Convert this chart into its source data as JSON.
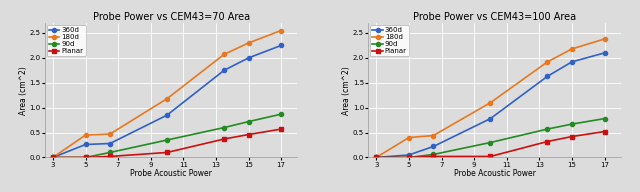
{
  "x": [
    3,
    5,
    6.5,
    10,
    13.5,
    15,
    17
  ],
  "plot1": {
    "title": "Probe Power vs CEM43=70 Area",
    "xlabel": "Probe Acoustic Power",
    "ylabel": "Area (cm^2)",
    "series": {
      "360d": [
        0.0,
        0.26,
        0.28,
        0.85,
        1.75,
        2.0,
        2.25
      ],
      "180d": [
        0.0,
        0.45,
        0.47,
        1.18,
        2.07,
        2.3,
        2.55
      ],
      "90d": [
        0.0,
        0.0,
        0.1,
        0.35,
        0.6,
        0.72,
        0.87
      ],
      "Planar": [
        0.0,
        0.0,
        0.02,
        0.1,
        0.37,
        0.46,
        0.57
      ]
    },
    "ylim": [
      0,
      2.7
    ],
    "yticks": [
      0,
      0.5,
      1.0,
      1.5,
      2.0,
      2.5
    ]
  },
  "plot2": {
    "title": "Probe Power vs CEM43=100 Area",
    "xlabel": "Probe Acoustic Power",
    "ylabel": "Area (cm^2)",
    "series": {
      "360d": [
        0.0,
        0.05,
        0.22,
        0.78,
        1.63,
        1.92,
        2.1
      ],
      "180d": [
        0.0,
        0.4,
        0.44,
        1.1,
        1.92,
        2.18,
        2.38
      ],
      "90d": [
        0.0,
        0.0,
        0.06,
        0.3,
        0.57,
        0.67,
        0.78
      ],
      "Planar": [
        0.0,
        0.0,
        0.02,
        0.02,
        0.32,
        0.42,
        0.52
      ]
    },
    "ylim": [
      0,
      2.7
    ],
    "yticks": [
      0,
      0.5,
      1.0,
      1.5,
      2.0,
      2.5
    ]
  },
  "colors": {
    "360d": "#3060c8",
    "180d": "#e87820",
    "90d": "#228B22",
    "Planar": "#cc1010"
  },
  "markers": {
    "360d": "o",
    "180d": "o",
    "90d": "o",
    "Planar": "s"
  },
  "xticks": [
    3,
    5,
    7,
    9,
    11,
    13,
    15,
    17
  ],
  "background_color": "#dcdcdc",
  "linewidth": 1.2,
  "markersize": 3,
  "title_fontsize": 7,
  "label_fontsize": 5.5,
  "tick_fontsize": 5,
  "legend_fontsize": 5
}
